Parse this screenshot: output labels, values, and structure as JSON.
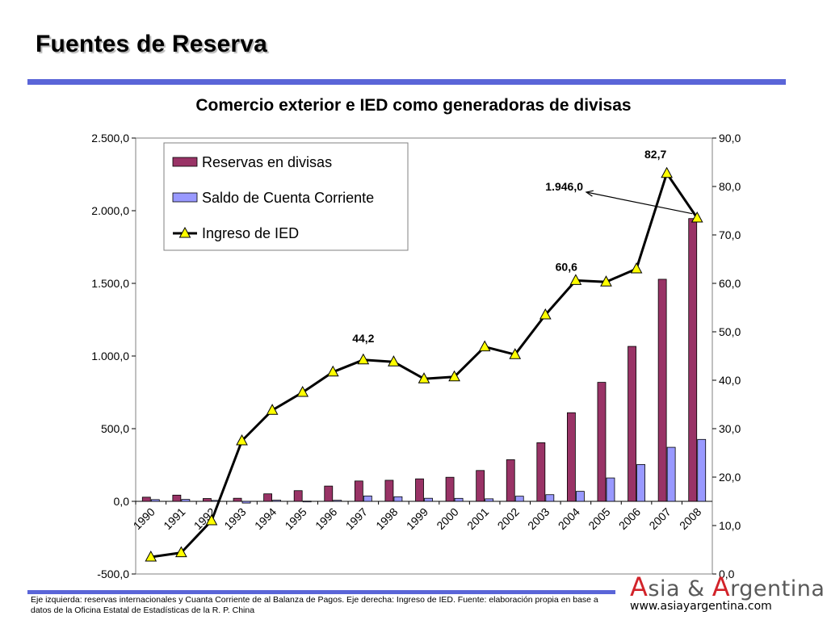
{
  "page": {
    "title": "Fuentes de Reserva",
    "footnote": "Eje izquierda: reservas internacionales y Cuanta Corriente de al Balanza de Pagos. Eje derecha: Ingreso de IED. Fuente: elaboración propia en base a datos de la Oficina Estatal de Estadísticas de la R. P. China",
    "logo": {
      "letter1": "A",
      "part1": "sia & ",
      "letter2": "A",
      "part2": "rgentina",
      "url": "www.asiayargentina.com"
    },
    "colors": {
      "accent_rule": "#5a65d8",
      "logo_red": "#d2232a",
      "logo_gray": "#595959"
    }
  },
  "chart_data": {
    "type": "bar",
    "title": "Comercio exterior e IED como generadoras de divisas",
    "categories": [
      "1990",
      "1991",
      "1992",
      "1993",
      "1994",
      "1995",
      "1996",
      "1997",
      "1998",
      "1999",
      "2000",
      "2001",
      "2002",
      "2003",
      "2004",
      "2005",
      "2006",
      "2007",
      "2008"
    ],
    "left_axis": {
      "ylim": [
        -500,
        2500
      ],
      "ticks": [
        -500,
        0,
        500,
        1000,
        1500,
        2000,
        2500
      ],
      "tick_labels": [
        "-500,0",
        "0,0",
        "500,0",
        "1.000,0",
        "1.500,0",
        "2.000,0",
        "2.500,0"
      ]
    },
    "right_axis": {
      "ylim": [
        0,
        90
      ],
      "ticks": [
        0,
        10,
        20,
        30,
        40,
        50,
        60,
        70,
        80,
        90
      ],
      "tick_labels": [
        "0,0",
        "10,0",
        "20,0",
        "30,0",
        "40,0",
        "50,0",
        "60,0",
        "70,0",
        "80,0",
        "90,0"
      ]
    },
    "series": [
      {
        "name": "Reservas en divisas",
        "type": "bar",
        "axis": "left",
        "color": "#993366",
        "values": [
          28.6,
          42.7,
          19.4,
          21.2,
          51.6,
          73.6,
          105.0,
          139.9,
          145.0,
          154.7,
          165.6,
          212.2,
          286.4,
          403.3,
          609.9,
          818.9,
          1066.3,
          1528.2,
          1946.0
        ]
      },
      {
        "name": "Saldo de Cuenta Corriente",
        "type": "bar",
        "axis": "left",
        "color": "#9999ff",
        "values": [
          12.0,
          13.3,
          6.4,
          -11.9,
          7.7,
          1.6,
          7.2,
          37.0,
          31.5,
          21.1,
          20.5,
          17.4,
          35.4,
          45.9,
          68.7,
          160.8,
          253.3,
          371.8,
          426.1
        ]
      },
      {
        "name": "Ingreso de IED",
        "type": "line",
        "axis": "right",
        "color": "#000000",
        "marker_color": "#ffff00",
        "values": [
          3.5,
          4.4,
          11.0,
          27.5,
          33.8,
          37.5,
          41.7,
          44.2,
          43.8,
          40.3,
          40.7,
          46.9,
          45.3,
          53.5,
          60.6,
          60.3,
          63.0,
          82.7,
          73.5
        ]
      }
    ],
    "annotations": [
      {
        "text": "44,2",
        "category": "1997"
      },
      {
        "text": "60,6",
        "category": "2004"
      },
      {
        "text": "82,7",
        "category": "2007"
      },
      {
        "text": "1.946,0",
        "category": "2008"
      }
    ],
    "legend": {
      "placement": "top-left"
    },
    "grid": false
  }
}
